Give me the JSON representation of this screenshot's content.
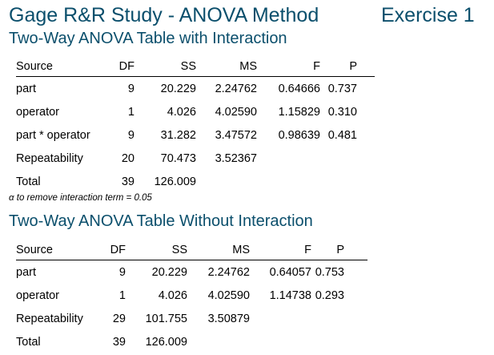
{
  "header": {
    "title": "Gage R&R Study - ANOVA Method",
    "exercise": "Exercise 1"
  },
  "table_with_interaction": {
    "title": "Two-Way ANOVA Table with Interaction",
    "columns": [
      "Source",
      "DF",
      "SS",
      "MS",
      "F",
      "P"
    ],
    "rows": [
      [
        "part",
        "9",
        "20.229",
        "2.24762",
        "0.64666",
        "0.737"
      ],
      [
        "operator",
        "1",
        "4.026",
        "4.02590",
        "1.15829",
        "0.310"
      ],
      [
        "part * operator",
        "9",
        "31.282",
        "3.47572",
        "0.98639",
        "0.481"
      ],
      [
        "Repeatability",
        "20",
        "70.473",
        "3.52367",
        "",
        ""
      ],
      [
        "Total",
        "39",
        "126.009",
        "",
        "",
        ""
      ]
    ]
  },
  "alpha_note": "α to remove interaction term = 0.05",
  "table_without_interaction": {
    "title": "Two-Way ANOVA Table Without Interaction",
    "columns": [
      "Source",
      "DF",
      "SS",
      "MS",
      "F",
      "P"
    ],
    "rows": [
      [
        "part",
        "9",
        "20.229",
        "2.24762",
        "0.64057",
        "0.753"
      ],
      [
        "operator",
        "1",
        "4.026",
        "4.02590",
        "1.14738",
        "0.293"
      ],
      [
        "Repeatability",
        "29",
        "101.755",
        "3.50879",
        "",
        ""
      ],
      [
        "Total",
        "39",
        "126.009",
        "",
        "",
        ""
      ]
    ]
  }
}
